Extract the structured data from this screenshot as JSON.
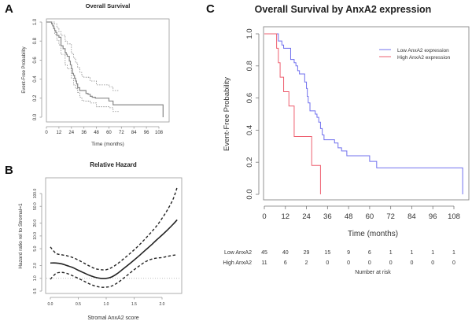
{
  "panels": {
    "a": {
      "letter": "A"
    },
    "b": {
      "letter": "B"
    },
    "c": {
      "letter": "C"
    }
  },
  "chart_data": [
    {
      "id": "a",
      "type": "line",
      "title": "Overall Survival",
      "xlabel": "Time (months)",
      "ylabel": "Event-Free Probability",
      "xlim": [
        0,
        112
      ],
      "ylim": [
        0,
        1
      ],
      "xticks": [
        "0",
        "12",
        "24",
        "36",
        "48",
        "60",
        "72",
        "84",
        "96",
        "108"
      ],
      "yticks": [
        "0.0",
        "0.2",
        "0.4",
        "0.6",
        "0.8",
        "1.0"
      ],
      "grid": false,
      "color": "#888888",
      "series": [
        {
          "name": "estimate",
          "style": "solid",
          "x": [
            0,
            5,
            6,
            7,
            8,
            9,
            10,
            12,
            14,
            16,
            18,
            19,
            20,
            22,
            23,
            24,
            25,
            26,
            27,
            28,
            29,
            30,
            32,
            34,
            36,
            38,
            40,
            42,
            44,
            47,
            60,
            64,
            112,
            112
          ],
          "y": [
            1.0,
            0.98,
            0.96,
            0.93,
            0.91,
            0.89,
            0.86,
            0.84,
            0.75,
            0.72,
            0.68,
            0.66,
            0.64,
            0.59,
            0.55,
            0.51,
            0.46,
            0.44,
            0.41,
            0.38,
            0.35,
            0.31,
            0.28,
            0.28,
            0.28,
            0.25,
            0.24,
            0.22,
            0.21,
            0.2,
            0.17,
            0.13,
            0.13,
            0.0
          ]
        },
        {
          "name": "upper-ci",
          "style": "dotted",
          "x": [
            0,
            8,
            10,
            12,
            14,
            18,
            20,
            24,
            26,
            28,
            30,
            32,
            34,
            36,
            42,
            48,
            60,
            64,
            70
          ],
          "y": [
            1.0,
            0.98,
            0.94,
            0.9,
            0.86,
            0.8,
            0.77,
            0.67,
            0.62,
            0.57,
            0.52,
            0.47,
            0.43,
            0.42,
            0.38,
            0.34,
            0.32,
            0.28,
            0.28
          ]
        },
        {
          "name": "lower-ci",
          "style": "dotted",
          "x": [
            0,
            6,
            8,
            10,
            12,
            14,
            18,
            20,
            24,
            26,
            28,
            30,
            32,
            34,
            36,
            42,
            48,
            60,
            64,
            70
          ],
          "y": [
            1.0,
            0.95,
            0.87,
            0.81,
            0.76,
            0.66,
            0.55,
            0.51,
            0.41,
            0.34,
            0.3,
            0.26,
            0.21,
            0.18,
            0.17,
            0.15,
            0.11,
            0.1,
            0.06,
            0.06
          ]
        }
      ]
    },
    {
      "id": "b",
      "type": "line",
      "title": "Relative Hazard",
      "xlabel": "Stromal AnxA2 score",
      "ylabel": "Hazard ratio rel to Stromal=1",
      "xlim": [
        -0.05,
        2.35
      ],
      "ylim": [
        0.45,
        180
      ],
      "yscale": "log",
      "xticks": [
        "0.0",
        "0.5",
        "1.0",
        "1.5",
        "2.0"
      ],
      "yticks": [
        "0.5",
        "1.0",
        "2.0",
        "5.0",
        "10.0",
        "20.0",
        "50.0",
        "100.0"
      ],
      "grid": false,
      "reference_line": {
        "y": 1.0,
        "style": "dotted",
        "color": "#aaaaaa"
      },
      "series": [
        {
          "name": "estimate",
          "style": "solid",
          "x": [
            0.0,
            0.1,
            0.2,
            0.3,
            0.4,
            0.5,
            0.6,
            0.7,
            0.8,
            0.9,
            1.0,
            1.1,
            1.2,
            1.3,
            1.4,
            1.5,
            1.6,
            1.7,
            1.8,
            1.9,
            2.0,
            2.1,
            2.2,
            2.27
          ],
          "y": [
            2.3,
            2.3,
            2.2,
            2.0,
            1.8,
            1.55,
            1.35,
            1.18,
            1.06,
            1.0,
            1.0,
            1.08,
            1.3,
            1.65,
            2.1,
            2.7,
            3.5,
            4.6,
            6.0,
            8.0,
            10.5,
            14.0,
            19.0,
            24.0
          ]
        },
        {
          "name": "upper-ci",
          "style": "dashed",
          "x": [
            0.0,
            0.1,
            0.2,
            0.3,
            0.4,
            0.5,
            0.6,
            0.7,
            0.8,
            0.9,
            1.0,
            1.1,
            1.2,
            1.3,
            1.4,
            1.5,
            1.6,
            1.7,
            1.8,
            1.9,
            2.0,
            2.1,
            2.2,
            2.27
          ],
          "y": [
            5.5,
            3.9,
            3.6,
            3.4,
            3.1,
            2.7,
            2.3,
            1.95,
            1.7,
            1.6,
            1.6,
            1.8,
            2.2,
            2.8,
            3.6,
            4.7,
            6.3,
            8.6,
            12.0,
            17.0,
            26.0,
            42.0,
            75.0,
            140.0
          ]
        },
        {
          "name": "lower-ci",
          "style": "dashed",
          "x": [
            0.0,
            0.1,
            0.2,
            0.3,
            0.4,
            0.5,
            0.6,
            0.7,
            0.8,
            0.9,
            1.0,
            1.1,
            1.2,
            1.3,
            1.4,
            1.5,
            1.6,
            1.7,
            1.8,
            1.9,
            2.0,
            2.1,
            2.2,
            2.27
          ],
          "y": [
            0.95,
            1.3,
            1.38,
            1.3,
            1.15,
            1.0,
            0.86,
            0.74,
            0.66,
            0.62,
            0.62,
            0.66,
            0.78,
            0.98,
            1.25,
            1.6,
            2.0,
            2.45,
            2.8,
            3.0,
            3.1,
            3.3,
            3.5,
            3.6
          ]
        }
      ]
    },
    {
      "id": "c",
      "type": "line",
      "title": "Overall Survival by AnxA2 expression",
      "xlabel": "Time (months)",
      "ylabel": "Event-Free Probability",
      "xlim": [
        -0.5,
        114
      ],
      "ylim": [
        -0.04,
        1.04
      ],
      "xticks": [
        "0",
        "12",
        "24",
        "36",
        "48",
        "60",
        "72",
        "84",
        "96",
        "108"
      ],
      "yticks": [
        "0.0",
        "0.2",
        "0.4",
        "0.6",
        "0.8",
        "1.0"
      ],
      "grid": false,
      "legend": {
        "position": "top-right"
      },
      "series": [
        {
          "name": "Low AnxA2 expression",
          "color": "#7070ee",
          "x": [
            0,
            7,
            8,
            10,
            11,
            12,
            14,
            15,
            17,
            18,
            19,
            20,
            21,
            22,
            23,
            24,
            24.5,
            25,
            26,
            27,
            29,
            30,
            31,
            32,
            33,
            34,
            38,
            40,
            42,
            44,
            47,
            60,
            64,
            113,
            113
          ],
          "y": [
            1.0,
            1.0,
            0.955,
            0.93,
            0.91,
            0.91,
            0.91,
            0.84,
            0.82,
            0.8,
            0.77,
            0.75,
            0.75,
            0.75,
            0.7,
            0.66,
            0.61,
            0.57,
            0.52,
            0.52,
            0.5,
            0.48,
            0.45,
            0.41,
            0.37,
            0.34,
            0.34,
            0.32,
            0.29,
            0.27,
            0.24,
            0.205,
            0.165,
            0.165,
            0.0
          ]
        },
        {
          "name": "High AnxA2 expression",
          "color": "#ee6070",
          "x": [
            0,
            5,
            7,
            8,
            9,
            11,
            14,
            17,
            27,
            32,
            32
          ],
          "y": [
            1.0,
            1.0,
            0.91,
            0.82,
            0.73,
            0.64,
            0.55,
            0.36,
            0.18,
            0.09,
            0.0
          ]
        }
      ],
      "risk_table": {
        "title": "Number at risk",
        "times": [
          0,
          12,
          24,
          36,
          48,
          60,
          72,
          84,
          96,
          108
        ],
        "rows": [
          {
            "label": "Low AnxA2",
            "color": "#6666ee",
            "counts": [
              "45",
              "40",
              "29",
              "15",
              "9",
              "6",
              "1",
              "1",
              "1",
              "1"
            ]
          },
          {
            "label": "High AnxA2",
            "color": "#ee5566",
            "counts": [
              "11",
              "6",
              "2",
              "0",
              "0",
              "0",
              "0",
              "0",
              "0",
              "0"
            ]
          }
        ]
      }
    }
  ]
}
